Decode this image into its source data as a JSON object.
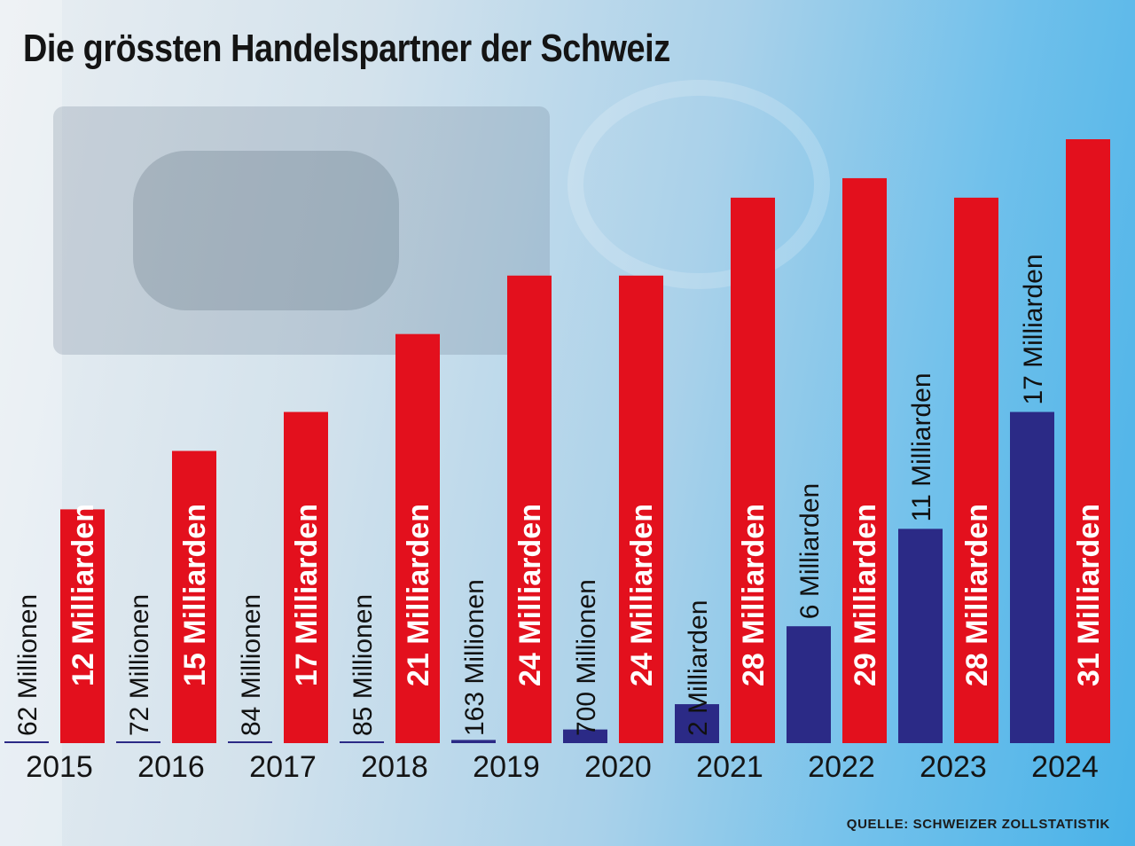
{
  "title": "Die grössten Handelspartner der Schweiz",
  "source": "QUELLE: SCHWEIZER ZOLLSTATISTIK",
  "colors": {
    "blue_series": "#2b2a86",
    "red_series": "#e3101d",
    "label_on_red": "#ffffff",
    "label_dark": "#111111"
  },
  "chart_data": {
    "type": "bar",
    "title": "Die grössten Handelspartner der Schweiz",
    "categories": [
      "2015",
      "2016",
      "2017",
      "2018",
      "2019",
      "2020",
      "2021",
      "2022",
      "2023",
      "2024"
    ],
    "unit": "Milliarden CHF",
    "series": [
      {
        "color": "#2b2a86",
        "values": [
          0.062,
          0.072,
          0.084,
          0.085,
          0.163,
          0.7,
          2,
          6,
          11,
          17
        ],
        "labels": [
          "62 Millionen",
          "72 Millionen",
          "84 Millionen",
          "85 Millionen",
          "163 Millionen",
          "700 Millionen",
          "2 Milliarden",
          "6 Milliarden",
          "11 Milliarden",
          "17 Milliarden"
        ]
      },
      {
        "color": "#e3101d",
        "values": [
          12,
          15,
          17,
          21,
          24,
          24,
          28,
          29,
          28,
          31
        ],
        "labels": [
          "12 Milliarden",
          "15 Milliarden",
          "17 Milliarden",
          "21 Milliarden",
          "24 Milliarden",
          "24 Milliarden",
          "28 Milliarden",
          "29 Milliarden",
          "28 Milliarden",
          "31 Milliarden"
        ]
      }
    ],
    "ylim": [
      0,
      31
    ],
    "grid": false,
    "legend": "none"
  }
}
